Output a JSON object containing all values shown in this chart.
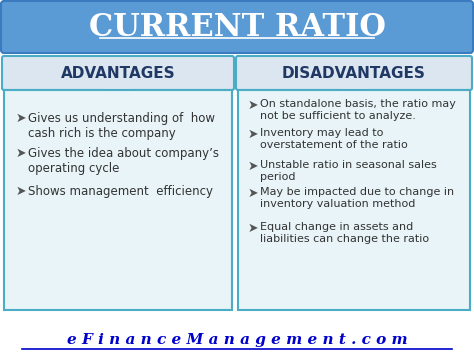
{
  "title": "CURRENT RATIO",
  "title_bg": "#5b9bd5",
  "title_color": "white",
  "adv_header": "ADVANTAGES",
  "dis_header": "DISADVANTAGES",
  "header_bg": "#dce6f1",
  "header_text_color": "#1f3864",
  "box_bg": "#e8f4f8",
  "box_border": "#4bacc6",
  "advantages": [
    "Gives us understanding of  how\ncash rich is the company",
    "Gives the idea about company’s\noperating cycle",
    "Shows management  efficiency"
  ],
  "disadvantages": [
    "On standalone basis, the ratio may\nnot be sufficient to analyze.",
    "Inventory may lead to\noverstatement of the ratio",
    "Unstable ratio in seasonal sales\nperiod",
    "May be impacted due to change in\ninventory valuation method",
    "Equal change in assets and\nliabilities can change the ratio"
  ],
  "footer": "e F i n a n c e M a n a g e m e n t . c o m",
  "footer_color": "#0000cc",
  "bg_color": "white"
}
